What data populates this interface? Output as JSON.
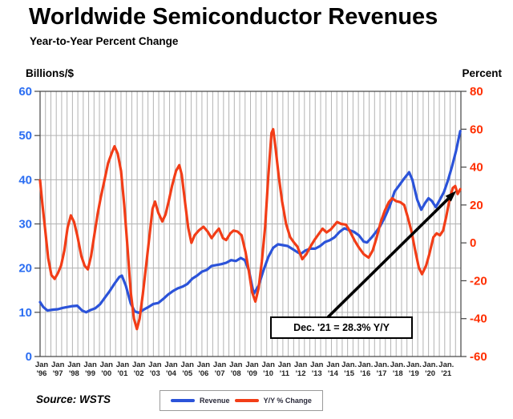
{
  "title": "Worldwide Semiconductor Revenues",
  "subtitle": "Year-to-Year Percent Change",
  "source": "Source: WSTS",
  "chart_data": {
    "type": "line",
    "title": "Worldwide Semiconductor Revenues",
    "subtitle": "Year-to-Year Percent Change",
    "left_axis": {
      "label": "Billions/$",
      "min": 0,
      "max": 60,
      "step": 10,
      "text_color": "#2a6df2"
    },
    "right_axis": {
      "label": "Percent",
      "min": -60,
      "max": 80,
      "step": 20,
      "text_color": "#ff2e00"
    },
    "grid": {
      "color": "#b3b3b3",
      "frame_color": "#444444",
      "vlines_per_year": 3,
      "x_label_color": "#222222"
    },
    "x_labels": [
      [
        "Jan",
        "'96"
      ],
      [
        "Jan",
        "'97"
      ],
      [
        "Jan",
        "'98"
      ],
      [
        "Jan",
        "'99"
      ],
      [
        "Jan",
        "'00"
      ],
      [
        "Jan",
        "'01"
      ],
      [
        "Jan",
        "'02"
      ],
      [
        "Jan",
        "'03"
      ],
      [
        "Jan",
        "'04"
      ],
      [
        "Jan",
        "'05"
      ],
      [
        "Jan",
        "'06"
      ],
      [
        "Jan",
        "'07"
      ],
      [
        "Jan",
        "'08"
      ],
      [
        "Jan",
        "'09"
      ],
      [
        "Jan",
        "'10"
      ],
      [
        "Jan",
        "'11"
      ],
      [
        "Jan",
        "'12"
      ],
      [
        "Jan",
        "'13"
      ],
      [
        "Jan",
        "'14"
      ],
      [
        "Jan.",
        "'15"
      ],
      [
        "Jan.",
        "'16"
      ],
      [
        "Jan.",
        "'17"
      ],
      [
        "Jan.",
        "'18"
      ],
      [
        "Jan.",
        "'19"
      ],
      [
        "Jan.",
        "'20"
      ],
      [
        "Jan.",
        "'21"
      ]
    ],
    "series": [
      {
        "name": "Revenue",
        "axis": "left",
        "color": "#2b53d9",
        "unit": "billions USD per month",
        "points": [
          [
            1996.0,
            12.3
          ],
          [
            1996.2,
            11.2
          ],
          [
            1996.45,
            10.4
          ],
          [
            1996.8,
            10.6
          ],
          [
            1997.1,
            10.7
          ],
          [
            1997.4,
            11.0
          ],
          [
            1997.7,
            11.2
          ],
          [
            1998.0,
            11.4
          ],
          [
            1998.3,
            11.5
          ],
          [
            1998.6,
            10.4
          ],
          [
            1998.85,
            10.0
          ],
          [
            1999.1,
            10.5
          ],
          [
            1999.4,
            10.9
          ],
          [
            1999.7,
            11.8
          ],
          [
            2000.0,
            13.3
          ],
          [
            2000.3,
            14.8
          ],
          [
            2000.6,
            16.5
          ],
          [
            2000.9,
            18.0
          ],
          [
            2001.05,
            18.3
          ],
          [
            2001.3,
            16.0
          ],
          [
            2001.6,
            12.0
          ],
          [
            2001.85,
            10.2
          ],
          [
            2002.1,
            9.9
          ],
          [
            2002.4,
            10.6
          ],
          [
            2002.7,
            11.2
          ],
          [
            2003.0,
            11.9
          ],
          [
            2003.3,
            12.1
          ],
          [
            2003.6,
            13.0
          ],
          [
            2003.9,
            14.0
          ],
          [
            2004.2,
            14.8
          ],
          [
            2004.5,
            15.4
          ],
          [
            2004.8,
            15.8
          ],
          [
            2005.1,
            16.4
          ],
          [
            2005.4,
            17.6
          ],
          [
            2005.7,
            18.3
          ],
          [
            2006.0,
            19.2
          ],
          [
            2006.3,
            19.6
          ],
          [
            2006.6,
            20.5
          ],
          [
            2006.9,
            20.7
          ],
          [
            2007.2,
            20.9
          ],
          [
            2007.5,
            21.2
          ],
          [
            2007.8,
            21.8
          ],
          [
            2008.1,
            21.6
          ],
          [
            2008.4,
            22.3
          ],
          [
            2008.65,
            21.8
          ],
          [
            2008.9,
            19.5
          ],
          [
            2009.2,
            14.2
          ],
          [
            2009.5,
            16.0
          ],
          [
            2009.8,
            19.5
          ],
          [
            2010.1,
            22.5
          ],
          [
            2010.4,
            24.6
          ],
          [
            2010.7,
            25.4
          ],
          [
            2011.0,
            25.2
          ],
          [
            2011.3,
            25.0
          ],
          [
            2011.6,
            24.3
          ],
          [
            2011.9,
            23.6
          ],
          [
            2012.1,
            23.2
          ],
          [
            2012.4,
            24.0
          ],
          [
            2012.7,
            24.4
          ],
          [
            2013.0,
            24.4
          ],
          [
            2013.3,
            25.0
          ],
          [
            2013.6,
            25.9
          ],
          [
            2013.9,
            26.3
          ],
          [
            2014.2,
            27.0
          ],
          [
            2014.5,
            28.2
          ],
          [
            2014.8,
            29.0
          ],
          [
            2015.1,
            28.6
          ],
          [
            2015.4,
            28.2
          ],
          [
            2015.7,
            27.4
          ],
          [
            2016.0,
            26.0
          ],
          [
            2016.2,
            25.8
          ],
          [
            2016.5,
            27.0
          ],
          [
            2016.8,
            28.4
          ],
          [
            2017.0,
            29.4
          ],
          [
            2017.3,
            31.5
          ],
          [
            2017.6,
            34.0
          ],
          [
            2017.9,
            37.3
          ],
          [
            2018.2,
            38.8
          ],
          [
            2018.5,
            40.3
          ],
          [
            2018.8,
            41.7
          ],
          [
            2019.0,
            40.0
          ],
          [
            2019.3,
            35.5
          ],
          [
            2019.55,
            33.2
          ],
          [
            2019.8,
            34.8
          ],
          [
            2020.0,
            35.8
          ],
          [
            2020.2,
            35.2
          ],
          [
            2020.45,
            33.8
          ],
          [
            2020.7,
            35.5
          ],
          [
            2020.95,
            37.2
          ],
          [
            2021.2,
            39.8
          ],
          [
            2021.45,
            43.0
          ],
          [
            2021.7,
            46.5
          ],
          [
            2021.96,
            51.0
          ]
        ]
      },
      {
        "name": "Y/Y % Change",
        "axis": "right",
        "color": "#f23d17",
        "unit": "percent",
        "points": [
          [
            1996.0,
            33
          ],
          [
            1996.15,
            20
          ],
          [
            1996.3,
            8
          ],
          [
            1996.5,
            -8
          ],
          [
            1996.7,
            -17
          ],
          [
            1996.9,
            -19
          ],
          [
            1997.1,
            -16
          ],
          [
            1997.3,
            -12
          ],
          [
            1997.5,
            -4
          ],
          [
            1997.7,
            8
          ],
          [
            1997.9,
            14.5
          ],
          [
            1998.1,
            11
          ],
          [
            1998.3,
            4
          ],
          [
            1998.55,
            -7
          ],
          [
            1998.75,
            -12
          ],
          [
            1998.95,
            -14
          ],
          [
            1999.15,
            -7
          ],
          [
            1999.35,
            4
          ],
          [
            1999.55,
            15
          ],
          [
            1999.75,
            24
          ],
          [
            2000.0,
            34
          ],
          [
            2000.2,
            42
          ],
          [
            2000.45,
            48
          ],
          [
            2000.6,
            51
          ],
          [
            2000.8,
            47
          ],
          [
            2001.0,
            38
          ],
          [
            2001.2,
            20
          ],
          [
            2001.4,
            -2
          ],
          [
            2001.6,
            -26
          ],
          [
            2001.8,
            -40
          ],
          [
            2001.98,
            -45.5
          ],
          [
            2002.15,
            -40
          ],
          [
            2002.35,
            -27
          ],
          [
            2002.55,
            -12
          ],
          [
            2002.75,
            3
          ],
          [
            2002.95,
            18
          ],
          [
            2003.1,
            21.8
          ],
          [
            2003.3,
            16
          ],
          [
            2003.55,
            11.3
          ],
          [
            2003.75,
            15
          ],
          [
            2003.95,
            22
          ],
          [
            2004.15,
            30
          ],
          [
            2004.4,
            38
          ],
          [
            2004.6,
            41
          ],
          [
            2004.75,
            36
          ],
          [
            2004.95,
            22
          ],
          [
            2005.15,
            8
          ],
          [
            2005.35,
            0
          ],
          [
            2005.55,
            4
          ],
          [
            2005.8,
            6.5
          ],
          [
            2006.1,
            8.5
          ],
          [
            2006.35,
            6
          ],
          [
            2006.6,
            2.5
          ],
          [
            2006.85,
            5.5
          ],
          [
            2007.05,
            7.5
          ],
          [
            2007.3,
            2.5
          ],
          [
            2007.5,
            1.5
          ],
          [
            2007.75,
            5
          ],
          [
            2007.95,
            6.5
          ],
          [
            2008.2,
            6
          ],
          [
            2008.45,
            4
          ],
          [
            2008.7,
            -5
          ],
          [
            2008.9,
            -15
          ],
          [
            2009.1,
            -26
          ],
          [
            2009.3,
            -31
          ],
          [
            2009.5,
            -24
          ],
          [
            2009.7,
            -10
          ],
          [
            2009.9,
            8
          ],
          [
            2010.1,
            35
          ],
          [
            2010.3,
            58
          ],
          [
            2010.4,
            60
          ],
          [
            2010.55,
            50
          ],
          [
            2010.75,
            35
          ],
          [
            2010.95,
            22
          ],
          [
            2011.2,
            10
          ],
          [
            2011.45,
            3
          ],
          [
            2011.7,
            0
          ],
          [
            2011.9,
            -2
          ],
          [
            2012.2,
            -8.6
          ],
          [
            2012.45,
            -6
          ],
          [
            2012.7,
            -2
          ],
          [
            2012.95,
            1.5
          ],
          [
            2013.2,
            4.5
          ],
          [
            2013.45,
            7.5
          ],
          [
            2013.7,
            5.5
          ],
          [
            2013.95,
            7
          ],
          [
            2014.15,
            9
          ],
          [
            2014.35,
            11
          ],
          [
            2014.6,
            10
          ],
          [
            2014.9,
            9.6
          ],
          [
            2015.15,
            6
          ],
          [
            2015.45,
            1
          ],
          [
            2015.7,
            -2.5
          ],
          [
            2016.0,
            -6
          ],
          [
            2016.3,
            -7.8
          ],
          [
            2016.55,
            -4
          ],
          [
            2016.8,
            3
          ],
          [
            2017.05,
            11
          ],
          [
            2017.3,
            17
          ],
          [
            2017.55,
            21.5
          ],
          [
            2017.75,
            23.5
          ],
          [
            2018.0,
            22
          ],
          [
            2018.25,
            21.5
          ],
          [
            2018.5,
            20
          ],
          [
            2018.7,
            14
          ],
          [
            2018.95,
            6
          ],
          [
            2019.15,
            -3
          ],
          [
            2019.4,
            -13
          ],
          [
            2019.6,
            -16.5
          ],
          [
            2019.85,
            -12
          ],
          [
            2020.05,
            -6
          ],
          [
            2020.3,
            3
          ],
          [
            2020.5,
            5
          ],
          [
            2020.7,
            4
          ],
          [
            2020.9,
            6.5
          ],
          [
            2021.1,
            14
          ],
          [
            2021.3,
            23
          ],
          [
            2021.5,
            29
          ],
          [
            2021.65,
            30
          ],
          [
            2021.8,
            25.8
          ],
          [
            2021.96,
            28.3
          ]
        ]
      }
    ],
    "annotation": {
      "text": "Dec. '21 = 28.3% Y/Y",
      "points_to": "last Y/Y % Change value, Dec 2021"
    },
    "legend": {
      "items": [
        "Revenue",
        "Y/Y % Change"
      ],
      "position": "bottom-center"
    },
    "x_range": [
      1996,
      2022
    ],
    "grid_on": true
  }
}
